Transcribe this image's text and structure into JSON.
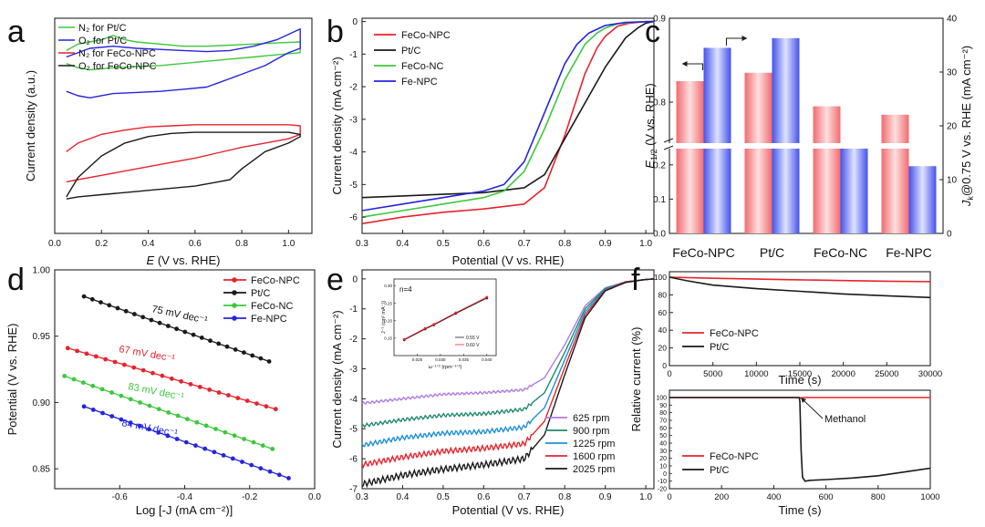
{
  "colors": {
    "red": "#e8232b",
    "black": "#1a1a1a",
    "green": "#3cc83c",
    "blue": "#2424e0",
    "violet": "#b07ae0",
    "teal": "#1f8a70",
    "sky": "#1c8fd8",
    "bar_red": "#f17f82",
    "bar_blue": "#6b78ee"
  },
  "chart_data": [
    {
      "id": "a",
      "panel_label": "a",
      "type": "line",
      "xlabel_prefix": "E",
      "xlabel_suffix": " (V vs. RHE)",
      "ylabel": "Current density (a.u.)",
      "xlim": [
        0.0,
        1.1
      ],
      "ylim": [
        0,
        10
      ],
      "xticks": [
        "0.0",
        "0.2",
        "0.4",
        "0.6",
        "0.8",
        "1.0"
      ],
      "show_yticks": false,
      "legend": [
        "N₂ for Pt/C",
        "O₂ for Pt/C",
        "N₂ for FeCo-NPC",
        "O₂ for FeCo-NPC"
      ],
      "series": [
        {
          "name": "N₂ for Pt/C",
          "color": "green",
          "x": [
            0.05,
            0.1,
            0.15,
            0.2,
            0.25,
            0.3,
            0.35,
            0.45,
            0.55,
            0.65,
            0.75,
            0.85,
            0.95,
            1.05,
            1.05,
            0.95,
            0.85,
            0.75,
            0.65,
            0.55,
            0.45,
            0.35,
            0.25,
            0.15,
            0.1,
            0.05
          ],
          "y": [
            8.5,
            8.8,
            8.9,
            9.0,
            9.2,
            9.0,
            8.9,
            8.8,
            8.7,
            8.7,
            8.75,
            8.8,
            8.85,
            8.9,
            8.4,
            8.3,
            8.2,
            8.1,
            8.0,
            7.9,
            7.8,
            7.75,
            7.7,
            7.6,
            7.7,
            7.9
          ]
        },
        {
          "name": "O₂ for Pt/C",
          "color": "blue",
          "x": [
            0.05,
            0.15,
            0.25,
            0.35,
            0.45,
            0.55,
            0.65,
            0.75,
            0.85,
            0.95,
            1.05,
            1.05,
            1.0,
            0.95,
            0.9,
            0.85,
            0.8,
            0.75,
            0.7,
            0.65,
            0.55,
            0.45,
            0.35,
            0.25,
            0.15,
            0.1,
            0.05
          ],
          "y": [
            8.2,
            8.6,
            8.7,
            8.6,
            8.55,
            8.5,
            8.45,
            8.5,
            8.7,
            9.0,
            9.5,
            8.6,
            8.4,
            8.1,
            7.8,
            7.6,
            7.4,
            7.2,
            7.0,
            6.8,
            6.7,
            6.6,
            6.55,
            6.5,
            6.3,
            6.4,
            6.6
          ]
        },
        {
          "name": "N₂ for FeCo-NPC",
          "color": "red",
          "x": [
            0.05,
            0.1,
            0.2,
            0.3,
            0.4,
            0.5,
            0.6,
            0.7,
            0.8,
            0.9,
            1.0,
            1.05,
            1.05,
            1.0,
            0.9,
            0.8,
            0.7,
            0.6,
            0.5,
            0.4,
            0.3,
            0.2,
            0.1,
            0.05
          ],
          "y": [
            3.8,
            4.2,
            4.6,
            4.8,
            4.95,
            5.0,
            5.05,
            5.05,
            5.05,
            5.05,
            5.05,
            5.0,
            4.6,
            4.4,
            4.2,
            4.0,
            3.75,
            3.5,
            3.3,
            3.1,
            2.9,
            2.7,
            2.5,
            2.4
          ]
        },
        {
          "name": "O₂ for FeCo-NPC",
          "color": "black",
          "x": [
            0.05,
            0.1,
            0.2,
            0.3,
            0.4,
            0.5,
            0.6,
            0.7,
            0.8,
            0.9,
            1.0,
            1.05,
            1.05,
            1.0,
            0.9,
            0.8,
            0.75,
            0.7,
            0.6,
            0.5,
            0.4,
            0.3,
            0.2,
            0.1,
            0.05
          ],
          "y": [
            1.7,
            2.6,
            3.6,
            4.2,
            4.5,
            4.65,
            4.7,
            4.7,
            4.7,
            4.7,
            4.7,
            4.6,
            4.5,
            4.2,
            3.8,
            3.0,
            2.5,
            2.4,
            2.2,
            2.1,
            2.0,
            1.9,
            1.8,
            1.7,
            1.6
          ]
        }
      ]
    },
    {
      "id": "b",
      "panel_label": "b",
      "type": "line",
      "xlabel": "Potential (V vs. RHE)",
      "ylabel": "Current density (mA cm⁻²)",
      "xlim": [
        0.3,
        1.02
      ],
      "ylim": [
        -6.5,
        0.1
      ],
      "xticks": [
        "0.3",
        "0.4",
        "0.5",
        "0.6",
        "0.7",
        "0.8",
        "0.9",
        "1.0"
      ],
      "yticks": [
        "0",
        "-1",
        "-2",
        "-3",
        "-4",
        "-5",
        "-6"
      ],
      "legend": [
        "FeCo-NPC",
        "Pt/C",
        "FeCo-NC",
        "Fe-NPC"
      ],
      "series": [
        {
          "name": "FeCo-NPC",
          "color": "red",
          "x": [
            0.3,
            0.4,
            0.5,
            0.6,
            0.7,
            0.75,
            0.8,
            0.85,
            0.88,
            0.9,
            0.93,
            0.96,
            1.0,
            1.02
          ],
          "y": [
            -6.2,
            -6.0,
            -5.85,
            -5.75,
            -5.6,
            -5.1,
            -3.5,
            -1.6,
            -0.8,
            -0.45,
            -0.15,
            -0.05,
            0.0,
            0.0
          ]
        },
        {
          "name": "Pt/C",
          "color": "black",
          "x": [
            0.3,
            0.4,
            0.5,
            0.6,
            0.7,
            0.75,
            0.8,
            0.85,
            0.9,
            0.95,
            0.98,
            1.0,
            1.02
          ],
          "y": [
            -5.4,
            -5.35,
            -5.3,
            -5.25,
            -5.1,
            -4.7,
            -3.6,
            -2.5,
            -1.4,
            -0.5,
            -0.2,
            -0.05,
            0.0
          ]
        },
        {
          "name": "FeCo-NC",
          "color": "green",
          "x": [
            0.3,
            0.4,
            0.5,
            0.6,
            0.65,
            0.7,
            0.75,
            0.8,
            0.85,
            0.88,
            0.9,
            0.93,
            0.97,
            1.02
          ],
          "y": [
            -6.0,
            -5.8,
            -5.6,
            -5.4,
            -5.2,
            -4.6,
            -3.3,
            -1.8,
            -0.7,
            -0.35,
            -0.2,
            -0.07,
            -0.02,
            0.0
          ]
        },
        {
          "name": "Fe-NPC",
          "color": "blue",
          "x": [
            0.3,
            0.4,
            0.5,
            0.6,
            0.65,
            0.7,
            0.75,
            0.8,
            0.83,
            0.86,
            0.9,
            0.95,
            1.02
          ],
          "y": [
            -5.8,
            -5.6,
            -5.4,
            -5.2,
            -5.0,
            -4.3,
            -2.8,
            -1.3,
            -0.7,
            -0.35,
            -0.12,
            -0.03,
            0.0
          ]
        }
      ]
    },
    {
      "id": "c",
      "panel_label": "c",
      "type": "bar",
      "categories": [
        "FeCo-NPC",
        "Pt/C",
        "FeCo-NC",
        "Fe-NPC"
      ],
      "left_axis": {
        "label_main": "E",
        "label_sub": "1/2",
        "label_suffix": " (V vs. RHE)",
        "upper_ticks": [
          "0.9",
          "0.8"
        ],
        "lower_ticks": [
          "0.2",
          "0.1",
          "0.0"
        ],
        "break_at": 0.25
      },
      "right_axis": {
        "label_main": "J",
        "label_sub": "k",
        "label_suffix": "@0.75 V vs. RHE (mA cm⁻²)",
        "ylim": [
          0,
          40
        ],
        "ticks": [
          "0",
          "10",
          "20",
          "30",
          "40"
        ]
      },
      "series": [
        {
          "name": "E1/2",
          "axis": "left",
          "color": "bar_red",
          "values": [
            0.825,
            0.835,
            0.795,
            0.785
          ]
        },
        {
          "name": "Jk",
          "axis": "right",
          "color": "bar_blue",
          "values": [
            34.5,
            36.3,
            16.0,
            12.5
          ]
        }
      ]
    },
    {
      "id": "d",
      "panel_label": "d",
      "type": "line",
      "xlabel": "Log [-J (mA cm⁻²)]",
      "ylabel": "Potential (V vs. RHE)",
      "xlim": [
        -0.8,
        0.0
      ],
      "ylim": [
        0.835,
        1.0
      ],
      "xticks": [
        "-0.6",
        "-0.4",
        "-0.2",
        "0.0"
      ],
      "yticks": [
        "1.00",
        "0.95",
        "0.90",
        "0.85"
      ],
      "legend": [
        "FeCo-NPC",
        "Pt/C",
        "FeCo-NC",
        "Fe-NPC"
      ],
      "annotations": [
        "75 mV dec⁻¹",
        "67 mV dec⁻¹",
        "83 mV dec⁻¹",
        "84 mV dec⁻¹"
      ],
      "series": [
        {
          "name": "FeCo-NPC",
          "color": "red",
          "x": [
            -0.76,
            -0.12
          ],
          "y": [
            0.941,
            0.895
          ]
        },
        {
          "name": "Pt/C",
          "color": "black",
          "x": [
            -0.71,
            -0.14
          ],
          "y": [
            0.98,
            0.931
          ]
        },
        {
          "name": "FeCo-NC",
          "color": "green",
          "x": [
            -0.77,
            -0.13
          ],
          "y": [
            0.92,
            0.865
          ]
        },
        {
          "name": "Fe-NPC",
          "color": "blue",
          "x": [
            -0.71,
            -0.08
          ],
          "y": [
            0.897,
            0.843
          ]
        }
      ]
    },
    {
      "id": "e",
      "panel_label": "e",
      "type": "line",
      "xlabel": "Potential (V vs. RHE)",
      "ylabel": "Current density (mA cm⁻²)",
      "xlim": [
        0.3,
        1.02
      ],
      "ylim": [
        -7.0,
        0.3
      ],
      "xticks": [
        "0.3",
        "0.4",
        "0.5",
        "0.6",
        "0.7",
        "0.8",
        "0.9",
        "1.0"
      ],
      "yticks": [
        "0",
        "-1",
        "-2",
        "-3",
        "-4",
        "-5",
        "-6",
        "-7"
      ],
      "legend": [
        "625 rpm",
        "900 rpm",
        "1225 rpm",
        "1600 rpm",
        "2025 rpm"
      ],
      "series": [
        {
          "name": "625 rpm",
          "color": "violet",
          "x": [
            0.3,
            0.4,
            0.5,
            0.6,
            0.7,
            0.75,
            0.8,
            0.85,
            0.9,
            0.95,
            1.0,
            1.02
          ],
          "y": [
            -4.15,
            -4.0,
            -3.85,
            -3.8,
            -3.7,
            -3.3,
            -2.2,
            -0.9,
            -0.3,
            -0.1,
            -0.02,
            0.0
          ]
        },
        {
          "name": "900 rpm",
          "color": "teal",
          "x": [
            0.3,
            0.4,
            0.5,
            0.6,
            0.7,
            0.75,
            0.8,
            0.85,
            0.9,
            0.95,
            1.0,
            1.02
          ],
          "y": [
            -4.9,
            -4.7,
            -4.55,
            -4.5,
            -4.35,
            -3.8,
            -2.45,
            -1.0,
            -0.32,
            -0.1,
            -0.02,
            0.0
          ]
        },
        {
          "name": "1225 rpm",
          "color": "sky",
          "x": [
            0.3,
            0.4,
            0.5,
            0.6,
            0.7,
            0.75,
            0.8,
            0.85,
            0.9,
            0.95,
            1.0,
            1.02
          ],
          "y": [
            -5.55,
            -5.3,
            -5.15,
            -5.1,
            -4.95,
            -4.3,
            -2.7,
            -1.1,
            -0.35,
            -0.1,
            -0.02,
            0.0
          ]
        },
        {
          "name": "1600 rpm",
          "color": "red",
          "x": [
            0.3,
            0.4,
            0.5,
            0.6,
            0.7,
            0.75,
            0.8,
            0.85,
            0.9,
            0.95,
            1.0,
            1.02
          ],
          "y": [
            -6.2,
            -5.95,
            -5.75,
            -5.65,
            -5.5,
            -4.75,
            -2.95,
            -1.2,
            -0.38,
            -0.1,
            -0.02,
            0.0
          ]
        },
        {
          "name": "2025 rpm",
          "color": "black",
          "x": [
            0.3,
            0.4,
            0.5,
            0.6,
            0.7,
            0.75,
            0.8,
            0.85,
            0.9,
            0.95,
            1.0,
            1.02
          ],
          "y": [
            -6.85,
            -6.55,
            -6.35,
            -6.2,
            -6.0,
            -5.2,
            -3.2,
            -1.3,
            -0.4,
            -0.12,
            -0.02,
            0.0
          ]
        }
      ],
      "inset": {
        "type": "scatter",
        "annotation": "n=4",
        "ylabel": "J⁻¹ (cm² mA⁻¹)",
        "xlabel": "ω⁻¹ᐟ² (rpm⁻¹ᐟ²)",
        "xlim": [
          0.02,
          0.042
        ],
        "ylim": [
          0.1,
          0.32
        ],
        "xticks": [
          "0.025",
          "0.030",
          "0.035",
          "0.040"
        ],
        "yticks": [
          "0.15",
          "0.20",
          "0.25",
          "0.30"
        ],
        "legend": [
          "0.55 V",
          "0.60 V"
        ],
        "series": [
          {
            "name": "0.55 V",
            "color": "black",
            "x": [
              0.0222,
              0.0267,
              0.0286,
              0.0333,
              0.04
            ],
            "y": [
              0.145,
              0.176,
              0.188,
              0.221,
              0.265
            ]
          },
          {
            "name": "0.60 V",
            "color": "red",
            "x": [
              0.0222,
              0.0267,
              0.0286,
              0.0333,
              0.04
            ],
            "y": [
              0.147,
              0.178,
              0.19,
              0.223,
              0.268
            ]
          }
        ]
      }
    },
    {
      "id": "f_top",
      "panel_label": "f",
      "type": "line",
      "xlabel": "Time (s)",
      "ylabel": "Relative current (%)",
      "xlim": [
        0,
        30000
      ],
      "ylim": [
        0,
        100
      ],
      "xticks": [
        "0",
        "5000",
        "10000",
        "15000",
        "20000",
        "25000",
        "30000"
      ],
      "yticks": [
        "0",
        "20",
        "40",
        "60",
        "80",
        "100"
      ],
      "legend": [
        "FeCo-NPC",
        "Pt/C"
      ],
      "series": [
        {
          "name": "FeCo-NPC",
          "color": "red",
          "x": [
            0,
            5000,
            10000,
            15000,
            20000,
            25000,
            30000
          ],
          "y": [
            100,
            98.8,
            97.8,
            97,
            96.2,
            95.5,
            95
          ]
        },
        {
          "name": "Pt/C",
          "color": "black",
          "x": [
            0,
            2000,
            5000,
            10000,
            15000,
            20000,
            25000,
            30000
          ],
          "y": [
            100,
            96,
            91,
            87,
            84,
            81,
            79,
            77
          ]
        }
      ]
    },
    {
      "id": "f_bottom",
      "type": "line",
      "xlabel": "Time (s)",
      "xlim": [
        0,
        1000
      ],
      "ylim": [
        -20,
        110
      ],
      "xticks": [
        "0",
        "200",
        "400",
        "600",
        "800",
        "1000"
      ],
      "yticks": [
        "100",
        "90",
        "80",
        "70",
        "60",
        "50",
        "40",
        "30",
        "20",
        "10",
        "0",
        "-10",
        "-20"
      ],
      "legend": [
        "FeCo-NPC",
        "Pt/C"
      ],
      "annotation": "Methanol",
      "series": [
        {
          "name": "FeCo-NPC",
          "color": "red",
          "x": [
            0,
            490,
            500,
            520,
            1000
          ],
          "y": [
            100,
            100,
            99.5,
            100,
            100
          ]
        },
        {
          "name": "Pt/C",
          "color": "black",
          "x": [
            0,
            498,
            500,
            505,
            510,
            520,
            540,
            600,
            700,
            800,
            900,
            1000
          ],
          "y": [
            100,
            100,
            95,
            30,
            -5,
            -10,
            -9,
            -8,
            -6,
            -3,
            2,
            7
          ]
        }
      ]
    }
  ]
}
